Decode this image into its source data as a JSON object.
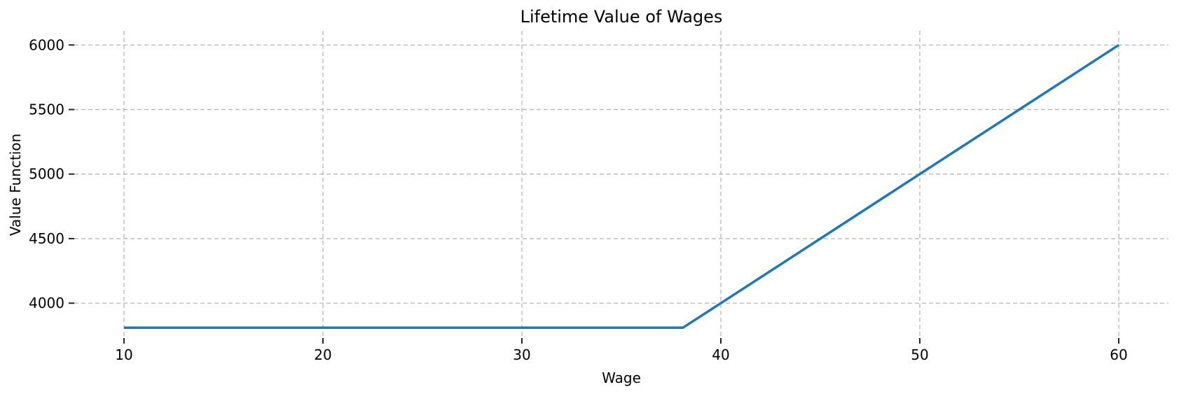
{
  "figure": {
    "title": "Lifetime Value of Wages",
    "xlabel": "Wage",
    "ylabel": "Value Function"
  },
  "chart_data": {
    "type": "line",
    "title": "Lifetime Value of Wages",
    "xlabel": "Wage",
    "ylabel": "Value Function",
    "xlim": [
      7.5,
      62.5
    ],
    "ylim": [
      3730,
      6110
    ],
    "x_ticks": [
      10,
      20,
      30,
      40,
      50,
      60
    ],
    "y_ticks": [
      4000,
      4500,
      5000,
      5500,
      6000
    ],
    "grid": true,
    "grid_style": "dashed",
    "legend": "none",
    "flat_value": 3810,
    "kink_x": 38.1,
    "series": [
      {
        "name": "value-function",
        "color": "#1f77b4",
        "line_width": 3.5,
        "points": [
          [
            10,
            3810
          ],
          [
            15,
            3810
          ],
          [
            20,
            3810
          ],
          [
            25,
            3810
          ],
          [
            30,
            3810
          ],
          [
            35,
            3810
          ],
          [
            38.1,
            3810
          ],
          [
            40,
            4000
          ],
          [
            45,
            4500
          ],
          [
            50,
            5000
          ],
          [
            55,
            5500
          ],
          [
            60,
            6000
          ]
        ]
      }
    ]
  },
  "colors": {
    "line": "#1f77b4",
    "grid": "#b0b0b0",
    "tick": "#262626",
    "text": "#000000",
    "background": "#ffffff"
  }
}
